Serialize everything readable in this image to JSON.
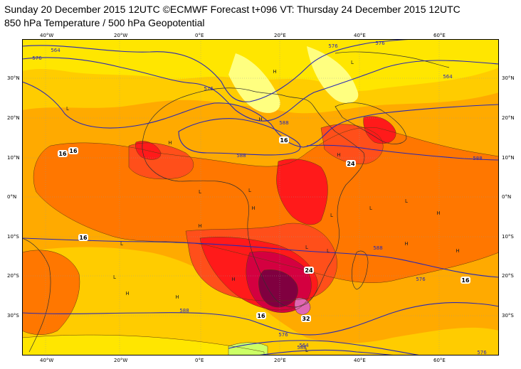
{
  "header": {
    "line1": "Sunday 20 December 2015 12UTC ©ECMWF Forecast t+096 VT: Thursday 24 December 2015 12UTC",
    "line2": "850 hPa Temperature / 500 hPa Geopotential"
  },
  "axes": {
    "lon_labels": [
      "40°W",
      "20°W",
      "0°E",
      "20°E",
      "40°E",
      "60°E"
    ],
    "lat_labels_left": [
      "30°N",
      "20°N",
      "10°N",
      "0°N",
      "10°S",
      "20°S",
      "30°S"
    ],
    "lat_labels_right": [
      "30°N",
      "20°N",
      "10°N",
      "0°N",
      "10°S",
      "20°S",
      "30°S"
    ]
  },
  "colors": {
    "lt_yellow": "#ffff80",
    "yellow": "#ffe600",
    "gold": "#ffcc00",
    "orange": "#ffaa00",
    "dk_orange": "#ff7700",
    "red_orange": "#ff4f1a",
    "red": "#ff1a1a",
    "dark_red": "#d40040",
    "maroon": "#800040",
    "pink": "#e066b3",
    "green": "#ccff66",
    "contour": "#2828b4",
    "coast": "#303030"
  },
  "temperature_labels": [
    "16",
    "16",
    "16",
    "16",
    "16",
    "16",
    "24",
    "24",
    "32"
  ],
  "geopotential_labels": [
    "564",
    "576",
    "576",
    "576",
    "576",
    "564",
    "588",
    "588",
    "588",
    "588",
    "588",
    "576",
    "564",
    "588",
    "576",
    "576"
  ],
  "pressure_centres": [
    "L",
    "L",
    "L",
    "L",
    "L",
    "L",
    "L",
    "L",
    "L",
    "L",
    "L",
    "L",
    "H",
    "H",
    "H",
    "H",
    "H",
    "H",
    "H",
    "H",
    "H",
    "H",
    "H",
    "H"
  ]
}
